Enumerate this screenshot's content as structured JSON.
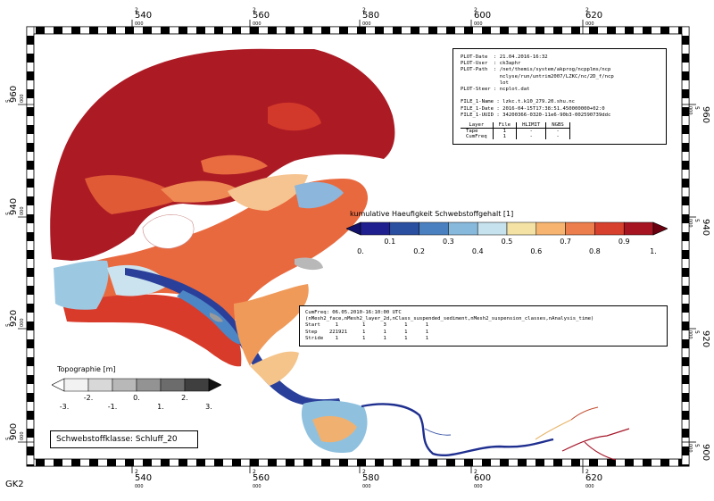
{
  "frame": {
    "corner_label": "GK2",
    "x_axis": [
      {
        "top": "2",
        "main": "540",
        "sub": "000"
      },
      {
        "top": "2",
        "main": "560",
        "sub": "000"
      },
      {
        "top": "2",
        "main": "580",
        "sub": "000"
      },
      {
        "top": "2",
        "main": "600",
        "sub": "000"
      },
      {
        "top": "2",
        "main": "620",
        "sub": "000"
      }
    ],
    "y_axis": [
      {
        "top": "5",
        "main": "960",
        "sub": "000"
      },
      {
        "top": "5",
        "main": "940",
        "sub": "000"
      },
      {
        "top": "5",
        "main": "920",
        "sub": "000"
      },
      {
        "top": "5",
        "main": "900",
        "sub": "000"
      }
    ]
  },
  "meta": {
    "lines": [
      "PLOT-Date  : 21.04.2016-16:32",
      "PLOT-User  : ck3aphr",
      "PLOT-Path  : /net/themis/system/akprog/ncpplms/ncp",
      "             nclyse/run/untrim2007/LZKC/nc/2D_f/ncp",
      "             lot",
      "PLOT-Steer : ncplot.dat",
      "",
      "FILE_1-Name : lzkc.t.k10_279.20.shu.nc",
      "FILE_1-Date : 2016-04-15T17:38:51.450000000+02:0",
      "FILE_1-UUID : 34200366-0320-11e6-90b3-002590739ddc"
    ],
    "table": {
      "header": [
        "Layer",
        "File",
        "HLIMIT",
        "NGBS"
      ],
      "rows": [
        [
          "Tape",
          "1",
          "-",
          "-"
        ],
        [
          "CumFreq",
          "1",
          "-",
          "-"
        ]
      ]
    }
  },
  "legend_main": {
    "title": "kumulative Haeufigkeit Schwebstoffgehalt [1]",
    "labels_bottom": [
      "0.",
      "0.2",
      "0.4",
      "0.6",
      "0.8",
      "1."
    ],
    "labels_top": [
      "0.1",
      "0.3",
      "0.5",
      "0.7",
      "0.9"
    ],
    "colors": [
      "#1f1f8f",
      "#2a4fa0",
      "#4a80c0",
      "#87b9dc",
      "#c6e2ee",
      "#f4e2a4",
      "#f6b470",
      "#ec7d4c",
      "#d8402e",
      "#a51420"
    ],
    "arrow_low": "#12126a",
    "arrow_high": "#6b0010"
  },
  "info": {
    "lines": [
      "CumFreq: 06.05.2010-16:10:00 UTC",
      "(nMesh2_face,nMesh2_layer_2d,nClass_suspended_sediment,nMesh2_suspension_classes,nAnalysis_time)",
      "Start     1        1      3      1      1",
      "Step    221921     1      1      1      1",
      "Stride    1        1      1      1      1"
    ]
  },
  "legend_topo": {
    "title": "Topographie [m]",
    "labels": [
      "-3.",
      "-2.",
      "-1.",
      "0.",
      "1.",
      "2.",
      "3."
    ],
    "colors": [
      "#f2f2f2",
      "#d8d8d8",
      "#b8b8b8",
      "#939393",
      "#6c6c6c",
      "#3f3f3f"
    ],
    "arrow_low": "#ffffff",
    "arrow_high": "#111111"
  },
  "class_label": "Schwebstoffklasse: Schluff_20"
}
